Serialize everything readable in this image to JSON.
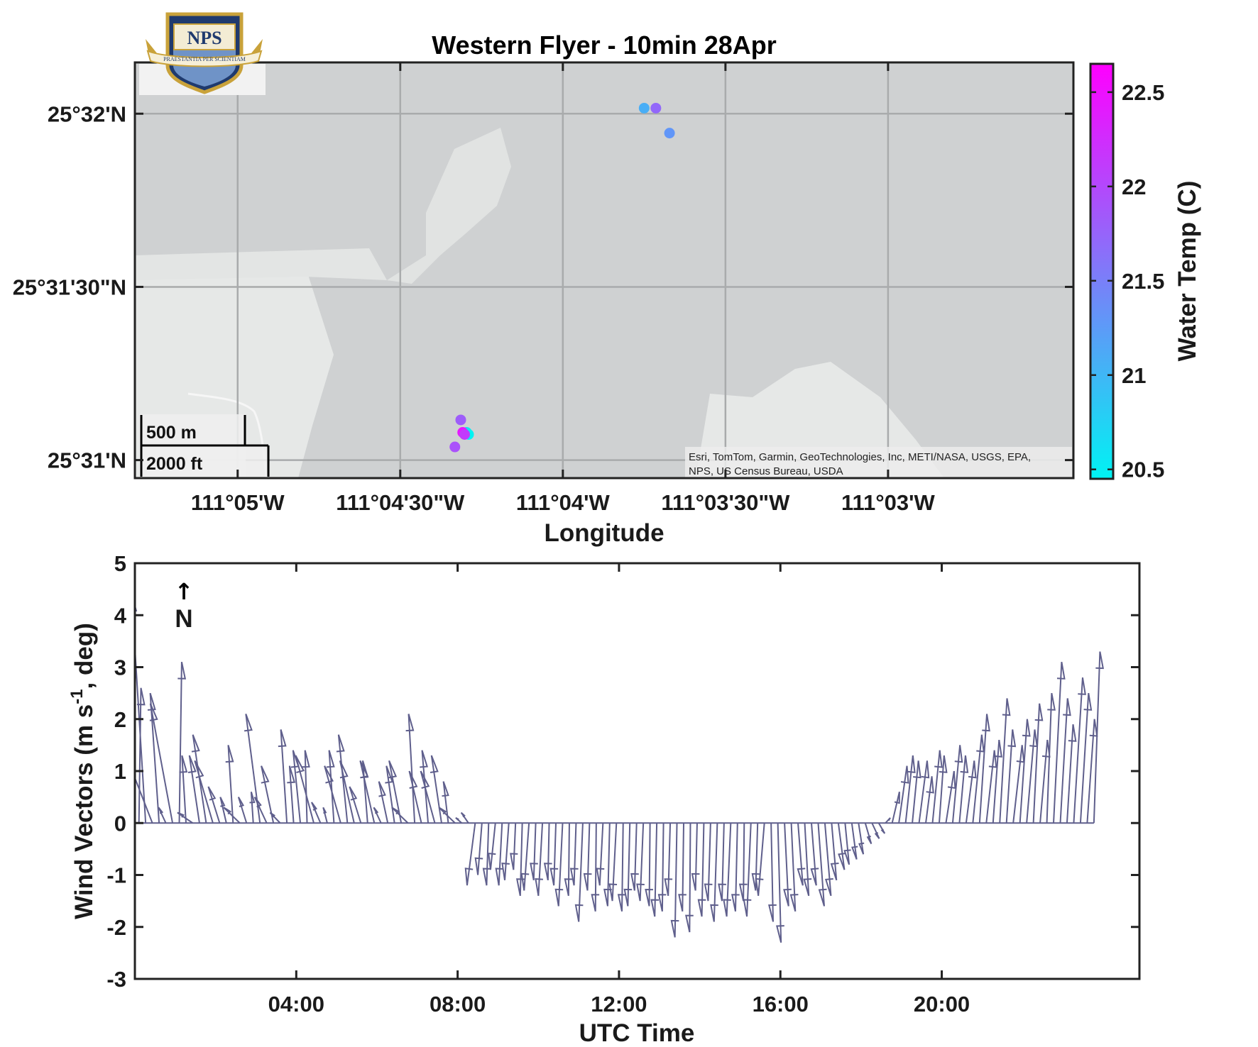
{
  "logo": {
    "text": "NPS",
    "motto": "PRAESTANTIA PER SCIENTIAM"
  },
  "map": {
    "title": "Western Flyer - 10min 28Apr",
    "xlabel": "Longitude",
    "lon_ticks": [
      "111°05'W",
      "111°04'30\"W",
      "111°04'W",
      "111°03'30\"W",
      "111°03'W"
    ],
    "lat_ticks": [
      "25°32'N",
      "25°31'30\"N",
      "25°31'N"
    ],
    "scale_m": "500 m",
    "scale_ft": "2000 ft",
    "attribution_line1": "Esri, TomTom, Garmin, GeoTechnologies, Inc, METI/NASA, USGS, EPA,",
    "attribution_line2": "NPS, US Census Bureau, USDA",
    "colors": {
      "water": "#cfd1d2",
      "land": "#e6e8e7",
      "grid": "#a9abac"
    }
  },
  "colorbar": {
    "label": "Water Temp (C)",
    "ticks": [
      "22.5",
      "22",
      "21.5",
      "21",
      "20.5"
    ],
    "range": [
      20.45,
      22.65
    ],
    "tick_values": [
      22.5,
      22,
      21.5,
      21,
      20.5
    ],
    "colormap": [
      "#00f3f3",
      "#ff00ff"
    ]
  },
  "wind": {
    "ylabel_main": "Wind Vectors (m s",
    "ylabel_sup": "-1",
    "ylabel_tail": ", deg)",
    "xlabel": "UTC Time",
    "x_ticks": [
      "04:00",
      "08:00",
      "12:00",
      "16:00",
      "20:00"
    ],
    "y_ticks": [
      "5",
      "4",
      "3",
      "2",
      "1",
      "0",
      "-1",
      "-2",
      "-3"
    ],
    "north_arrow": "↑",
    "north_label": "N",
    "arrow_color": "#5f5f8c"
  },
  "chart_data": [
    {
      "type": "scatter",
      "title": "Western Flyer - 10min 28Apr",
      "xlabel": "Longitude",
      "ylabel": "",
      "color_label": "Water Temp (C)",
      "color_range": [
        20.5,
        22.6
      ],
      "xlim": [
        -111.0886,
        -111.0405
      ],
      "ylim": [
        25.5158,
        25.5358
      ],
      "points": [
        {
          "lon": -111.0625,
          "lat": 25.5336,
          "temp": 21.1
        },
        {
          "lon": -111.0619,
          "lat": 25.5336,
          "temp": 21.7
        },
        {
          "lon": -111.0612,
          "lat": 25.5324,
          "temp": 21.3
        },
        {
          "lon": -111.0719,
          "lat": 25.5186,
          "temp": 21.8
        },
        {
          "lon": -111.0716,
          "lat": 25.518,
          "temp": 20.6
        },
        {
          "lon": -111.0715,
          "lat": 25.5179,
          "temp": 20.5
        },
        {
          "lon": -111.0718,
          "lat": 25.518,
          "temp": 22.4
        },
        {
          "lon": -111.0717,
          "lat": 25.5179,
          "temp": 22.1
        },
        {
          "lon": -111.0722,
          "lat": 25.5173,
          "temp": 21.9
        }
      ]
    },
    {
      "type": "line",
      "title": "",
      "xlabel": "UTC Time",
      "ylabel": "Wind Vectors (m s-1, deg)",
      "xlim_hours": [
        0,
        24.9
      ],
      "ylim": [
        -3,
        5
      ],
      "x_ticks_hours": [
        4,
        8,
        12,
        16,
        20
      ],
      "arrow_spacing_hours": 0.1667,
      "arrow_start_hours": 0.1,
      "arrow_count": 143,
      "u_dx_hours": [
        0.05,
        -0.35,
        -0.7,
        -0.22,
        -0.18,
        -0.55,
        0.06,
        -0.1,
        -0.38,
        -0.25,
        -0.33,
        -0.45,
        -0.28,
        -0.15,
        -0.12,
        -0.4,
        -0.2,
        -0.05,
        -0.35,
        -0.3,
        -0.3,
        -0.25,
        -0.15,
        -0.1,
        -0.18,
        -0.05,
        -0.45,
        -0.22,
        -0.1,
        -0.12,
        -0.4,
        -0.22,
        -0.35,
        -0.28,
        -0.12,
        -0.35,
        -0.18,
        -0.22,
        -0.2,
        -0.3,
        -0.4,
        -0.15,
        -0.3,
        -0.15,
        -0.35,
        -0.25,
        -0.12,
        -0.4,
        -0.15,
        -0.18,
        -0.2,
        -0.1,
        -0.05,
        -0.12,
        -0.08,
        -0.1,
        -0.05,
        -0.05,
        -0.12,
        -0.05,
        -0.1,
        -0.03,
        -0.05,
        -0.1,
        -0.02,
        -0.05,
        -0.1,
        -0.05,
        -0.02,
        -0.08,
        -0.05,
        -0.1,
        -0.03,
        -0.05,
        -0.05,
        -0.08,
        -0.02,
        -0.05,
        -0.03,
        -0.05,
        -0.05,
        -0.03,
        -0.02,
        -0.04,
        -0.05,
        -0.06,
        -0.08,
        -0.05,
        -0.1,
        -0.05,
        -0.02,
        -0.1,
        -0.05,
        -0.15,
        0.05,
        0.08,
        0.1,
        0.1,
        0.12,
        0.1,
        0.12,
        0.15,
        0.15,
        0.12,
        0.15,
        0.1,
        0.12,
        0.12,
        0.15,
        0.18,
        0.15,
        0.12,
        0.18,
        0.2,
        0.18,
        0.15,
        0.2,
        0.15,
        0.18,
        0.12,
        0.2,
        0.18,
        0.15,
        0.2,
        0.22,
        0.18,
        0.2,
        0.15,
        0.18,
        0.15,
        0.22,
        0.18,
        0.2,
        0.15,
        0.18,
        0.12,
        0.2,
        0.18,
        0.15,
        0.22,
        0.2,
        0.18,
        0.15
      ],
      "v": [
        2.6,
        4.4,
        1.4,
        2.5,
        0.3,
        2.3,
        3.1,
        1.3,
        0.2,
        1.3,
        1.7,
        1.2,
        0.7,
        0.5,
        1.5,
        0.3,
        0.5,
        0.6,
        2.1,
        0.5,
        1.1,
        0.2,
        1.8,
        1.1,
        1.4,
        1.4,
        1.3,
        0.4,
        0.3,
        1.4,
        1.1,
        1.7,
        1.2,
        0.7,
        1.2,
        1.2,
        0.3,
        0.8,
        1.1,
        1.2,
        0.3,
        2.1,
        1.0,
        1.4,
        1.0,
        1.3,
        0.8,
        0.3,
        0.1,
        0.2,
        -1.2,
        -1.0,
        -1.2,
        -0.9,
        -1.2,
        -1.1,
        -0.9,
        -1.4,
        -1.3,
        -1.1,
        -1.4,
        -1.1,
        -1.2,
        -1.6,
        -1.4,
        -1.2,
        -1.9,
        -1.3,
        -1.7,
        -1.2,
        -1.6,
        -1.5,
        -1.7,
        -1.6,
        -1.3,
        -1.5,
        -1.6,
        -1.8,
        -1.7,
        -1.4,
        -2.2,
        -1.7,
        -2.1,
        -1.3,
        -1.8,
        -1.5,
        -1.9,
        -1.5,
        -1.8,
        -1.7,
        -1.5,
        -1.8,
        -1.3,
        -1.4,
        -1.9,
        -2.3,
        -1.6,
        -1.7,
        -1.2,
        -1.4,
        -1.2,
        -1.6,
        -1.4,
        -1.1,
        -0.9,
        -0.8,
        -0.7,
        -0.6,
        -0.4,
        -0.3,
        -0.2,
        0.1,
        0.6,
        1.1,
        1.3,
        1.2,
        1.2,
        0.9,
        1.4,
        1.3,
        1.0,
        1.5,
        1.3,
        1.2,
        1.7,
        2.1,
        1.4,
        1.6,
        2.4,
        1.8,
        1.5,
        2.0,
        1.8,
        2.3,
        1.6,
        2.5,
        3.1,
        2.4,
        1.9,
        2.8,
        2.5,
        2.0,
        3.3
      ]
    }
  ]
}
